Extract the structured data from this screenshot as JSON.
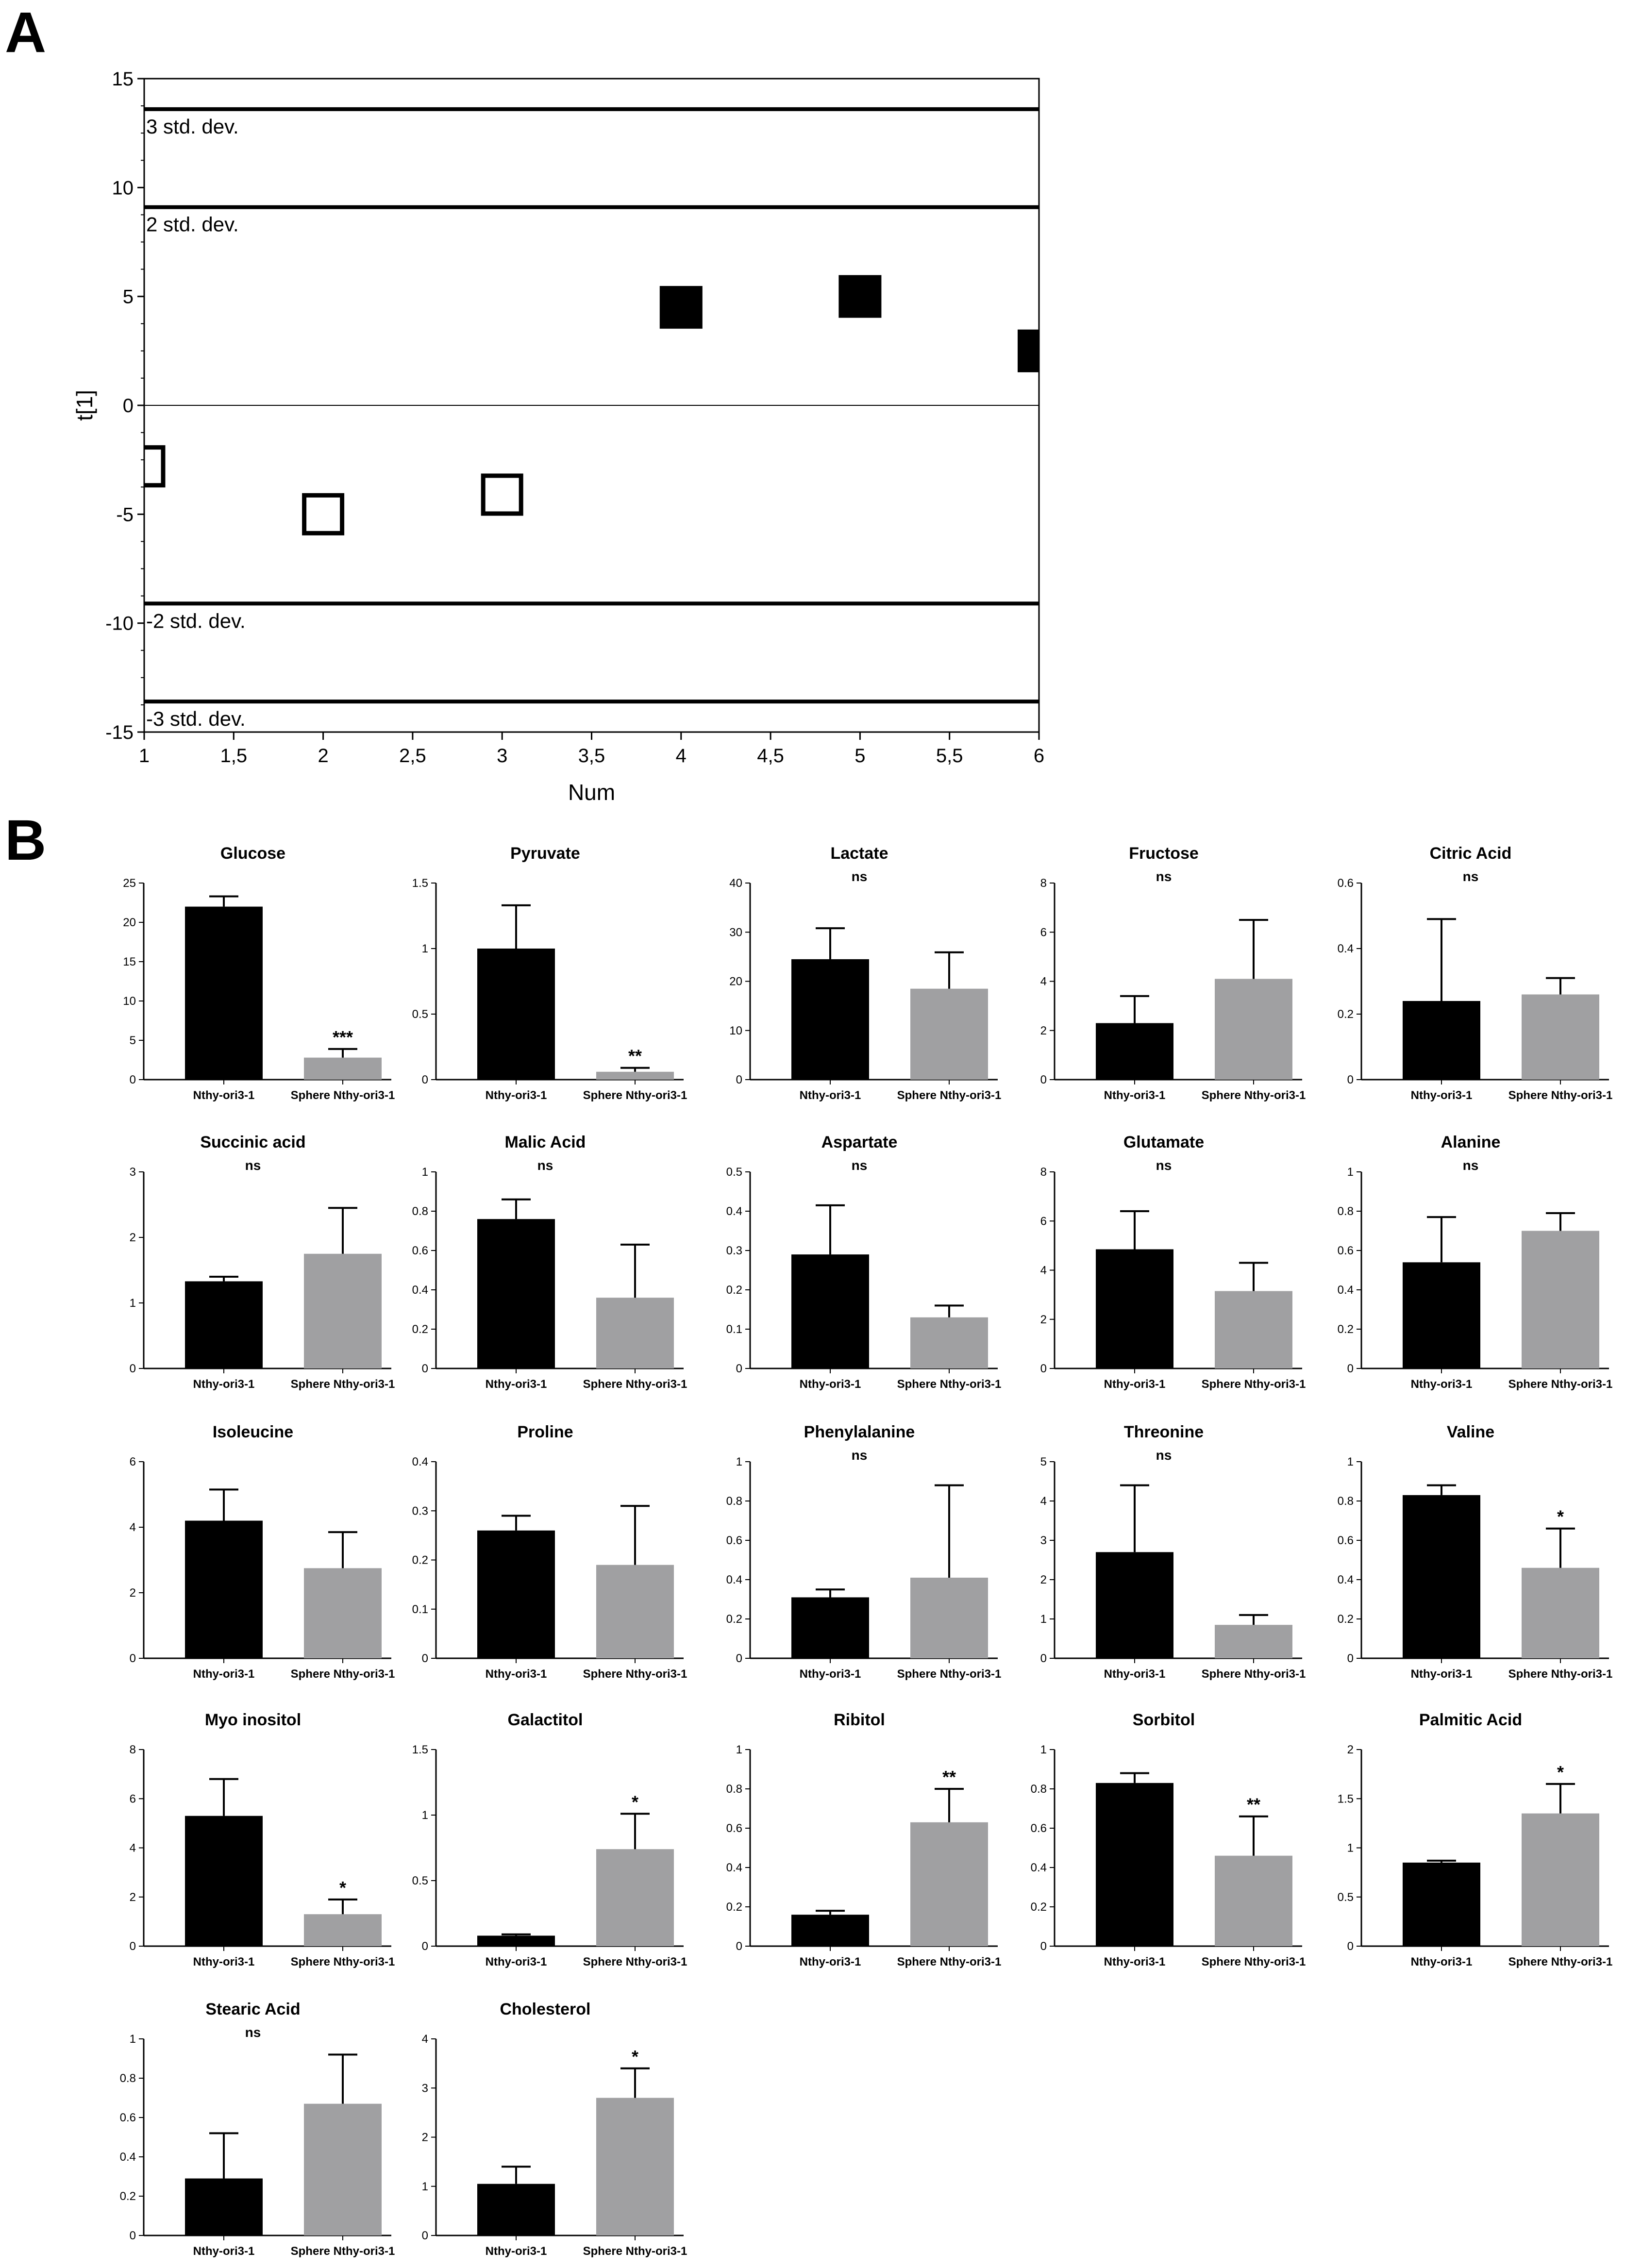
{
  "figure": {
    "panel_a_label": "A",
    "panel_b_label": "B"
  },
  "colors": {
    "black_bar": "#000000",
    "grey_bar": "#a0a0a2",
    "axis": "#000000"
  },
  "chart_data": [
    {
      "type": "scatter",
      "panel": "A",
      "xlabel": "Num",
      "ylabel": "t[1]",
      "xlim": [
        1,
        6
      ],
      "ylim": [
        -15,
        15
      ],
      "xticks": [
        1,
        1.5,
        2,
        2.5,
        3,
        3.5,
        4,
        4.5,
        5,
        5.5,
        6
      ],
      "xtick_labels": [
        "1",
        "1,5",
        "2",
        "2,5",
        "3",
        "3,5",
        "4",
        "4,5",
        "5",
        "5,5",
        "6"
      ],
      "yticks": [
        -15,
        -10,
        -5,
        0,
        5,
        10,
        15
      ],
      "ytick_labels": [
        "-15",
        "-10",
        "-5",
        "0",
        "5",
        "10",
        "15"
      ],
      "ref_lines": [
        {
          "y": 13.6,
          "label": "3 std. dev."
        },
        {
          "y": 9.1,
          "label": "2 std. dev."
        },
        {
          "y": -9.1,
          "label": "-2 std. dev."
        },
        {
          "y": -13.6,
          "label": "-3 std. dev."
        }
      ],
      "points": [
        {
          "x": 1,
          "y": -2.8,
          "group": "Nthy-ori3-1",
          "filled": false
        },
        {
          "x": 2,
          "y": -5.0,
          "group": "Nthy-ori3-1",
          "filled": false
        },
        {
          "x": 3,
          "y": -4.1,
          "group": "Nthy-ori3-1",
          "filled": false
        },
        {
          "x": 4,
          "y": 4.5,
          "group": "Sphere Nthy-ori3-1",
          "filled": true
        },
        {
          "x": 5,
          "y": 5.0,
          "group": "Sphere Nthy-ori3-1",
          "filled": true
        },
        {
          "x": 6,
          "y": 2.5,
          "group": "Sphere Nthy-ori3-1",
          "filled": true
        }
      ]
    },
    {
      "type": "bar",
      "panel": "B",
      "categories": [
        "Nthy-ori3-1",
        "Sphere Nthy-ori3-1"
      ],
      "series_colors": [
        "#000000",
        "#a0a0a2"
      ],
      "charts": [
        {
          "title": "Glucose",
          "values": [
            22,
            2.8
          ],
          "errors": [
            1.3,
            1.1
          ],
          "ymax": 25,
          "ticks": [
            0,
            5,
            10,
            15,
            20,
            25
          ],
          "sig": "***"
        },
        {
          "title": "Pyruvate",
          "values": [
            1.0,
            0.06
          ],
          "errors": [
            0.33,
            0.03
          ],
          "ymax": 1.5,
          "ticks": [
            0,
            0.5,
            1.0,
            1.5
          ],
          "sig": "**"
        },
        {
          "title": "Lactate",
          "values": [
            24.5,
            18.5
          ],
          "errors": [
            6.3,
            7.4
          ],
          "ymax": 40,
          "ticks": [
            0,
            10,
            20,
            30,
            40
          ],
          "sig": "ns"
        },
        {
          "title": "Fructose",
          "values": [
            2.3,
            4.1
          ],
          "errors": [
            1.1,
            2.4
          ],
          "ymax": 8,
          "ticks": [
            0,
            2,
            4,
            6,
            8
          ],
          "sig": "ns"
        },
        {
          "title": "Citric Acid",
          "values": [
            0.24,
            0.26
          ],
          "errors": [
            0.25,
            0.05
          ],
          "ymax": 0.6,
          "ticks": [
            0,
            0.2,
            0.4,
            0.6
          ],
          "sig": "ns"
        },
        {
          "title": "Succinic acid",
          "values": [
            1.33,
            1.75
          ],
          "errors": [
            0.07,
            0.7
          ],
          "ymax": 3,
          "ticks": [
            0,
            1,
            2,
            3
          ],
          "sig": "ns"
        },
        {
          "title": "Malic Acid",
          "values": [
            0.76,
            0.36
          ],
          "errors": [
            0.1,
            0.27
          ],
          "ymax": 1.0,
          "ticks": [
            0,
            0.2,
            0.4,
            0.6,
            0.8,
            1.0
          ],
          "sig": "ns"
        },
        {
          "title": "Aspartate",
          "values": [
            0.29,
            0.13
          ],
          "errors": [
            0.125,
            0.03
          ],
          "ymax": 0.5,
          "ticks": [
            0,
            0.1,
            0.2,
            0.3,
            0.4,
            0.5
          ],
          "sig": "ns"
        },
        {
          "title": "Glutamate",
          "values": [
            4.85,
            3.15
          ],
          "errors": [
            1.55,
            1.15
          ],
          "ymax": 8,
          "ticks": [
            0,
            2,
            4,
            6,
            8
          ],
          "sig": "ns"
        },
        {
          "title": "Alanine",
          "values": [
            0.54,
            0.7
          ],
          "errors": [
            0.23,
            0.09
          ],
          "ymax": 1.0,
          "ticks": [
            0,
            0.2,
            0.4,
            0.6,
            0.8,
            1.0
          ],
          "sig": "ns"
        },
        {
          "title": "Isoleucine",
          "values": [
            4.2,
            2.75
          ],
          "errors": [
            0.95,
            1.1
          ],
          "ymax": 6,
          "ticks": [
            0,
            2,
            4,
            6
          ],
          "sig": ""
        },
        {
          "title": "Proline",
          "values": [
            0.26,
            0.19
          ],
          "errors": [
            0.03,
            0.12
          ],
          "ymax": 0.4,
          "ticks": [
            0,
            0.1,
            0.2,
            0.3,
            0.4
          ],
          "sig": ""
        },
        {
          "title": "Phenylalanine",
          "values": [
            0.31,
            0.41
          ],
          "errors": [
            0.04,
            0.47
          ],
          "ymax": 1.0,
          "ticks": [
            0,
            0.2,
            0.4,
            0.6,
            0.8,
            1.0
          ],
          "sig": "ns"
        },
        {
          "title": "Threonine",
          "values": [
            2.7,
            0.85
          ],
          "errors": [
            1.7,
            0.25
          ],
          "ymax": 5,
          "ticks": [
            0,
            1,
            2,
            3,
            4,
            5
          ],
          "sig": "ns"
        },
        {
          "title": "Valine",
          "values": [
            0.83,
            0.46
          ],
          "errors": [
            0.05,
            0.2
          ],
          "ymax": 1.0,
          "ticks": [
            0,
            0.2,
            0.4,
            0.6,
            0.8,
            1.0
          ],
          "sig": "*"
        },
        {
          "title": "Myo inositol",
          "values": [
            5.3,
            1.3
          ],
          "errors": [
            1.5,
            0.6
          ],
          "ymax": 8,
          "ticks": [
            0,
            2,
            4,
            6,
            8
          ],
          "sig": "*"
        },
        {
          "title": "Galactitol",
          "values": [
            0.08,
            0.74
          ],
          "errors": [
            0.01,
            0.27
          ],
          "ymax": 1.5,
          "ticks": [
            0,
            0.5,
            1.0,
            1.5
          ],
          "sig": "*"
        },
        {
          "title": "Ribitol",
          "values": [
            0.16,
            0.63
          ],
          "errors": [
            0.02,
            0.17
          ],
          "ymax": 1.0,
          "ticks": [
            0,
            0.2,
            0.4,
            0.6,
            0.8,
            1.0
          ],
          "sig": "**"
        },
        {
          "title": "Sorbitol",
          "values": [
            0.83,
            0.46
          ],
          "errors": [
            0.05,
            0.2
          ],
          "ymax": 1.0,
          "ticks": [
            0,
            0.2,
            0.4,
            0.6,
            0.8,
            1.0
          ],
          "sig": "**"
        },
        {
          "title": "Palmitic Acid",
          "values": [
            0.85,
            1.35
          ],
          "errors": [
            0.02,
            0.3
          ],
          "ymax": 2.0,
          "ticks": [
            0,
            0.5,
            1.0,
            1.5,
            2.0
          ],
          "sig": "*"
        },
        {
          "title": "Stearic Acid",
          "values": [
            0.29,
            0.67
          ],
          "errors": [
            0.23,
            0.25
          ],
          "ymax": 1.0,
          "ticks": [
            0,
            0.2,
            0.4,
            0.6,
            0.8,
            1.0
          ],
          "sig": "ns"
        },
        {
          "title": "Cholesterol",
          "values": [
            1.05,
            2.8
          ],
          "errors": [
            0.35,
            0.6
          ],
          "ymax": 4,
          "ticks": [
            0,
            1,
            2,
            3,
            4
          ],
          "sig": "*"
        }
      ]
    }
  ]
}
